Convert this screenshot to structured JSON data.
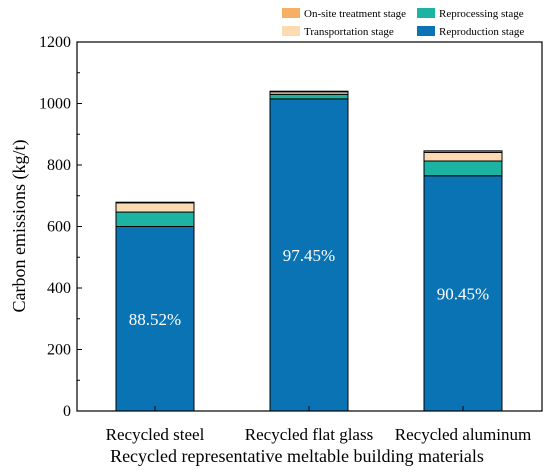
{
  "chart_data": {
    "type": "bar",
    "stacked": true,
    "categories": [
      "Recycled steel",
      "Recycled flat glass",
      "Recycled aluminum"
    ],
    "series": [
      {
        "name": "Reproduction stage",
        "color": "#0A73B3",
        "values": [
          600,
          1015,
          765
        ]
      },
      {
        "name": "Reprocessing stage",
        "color": "#1CB3A3",
        "values": [
          47,
          15,
          48
        ]
      },
      {
        "name": "Transportation stage",
        "color": "#FCDBB3",
        "values": [
          30,
          8,
          28
        ]
      },
      {
        "name": "On-site treatment stage",
        "color": "#F7B063",
        "values": [
          2,
          2,
          5
        ]
      }
    ],
    "bar_labels": [
      "88.52%",
      "97.45%",
      "90.45%"
    ],
    "xlabel": "Recycled representative meltable building materials",
    "ylabel": "Carbon emissions (kg/t)",
    "ylim": [
      0,
      1200
    ],
    "yticks": [
      0,
      200,
      400,
      600,
      800,
      1000,
      1200
    ],
    "grid": false,
    "legend_placement": "top-right",
    "legend_order": [
      "On-site treatment stage",
      "Reprocessing stage",
      "Transportation stage",
      "Reproduction stage"
    ]
  }
}
